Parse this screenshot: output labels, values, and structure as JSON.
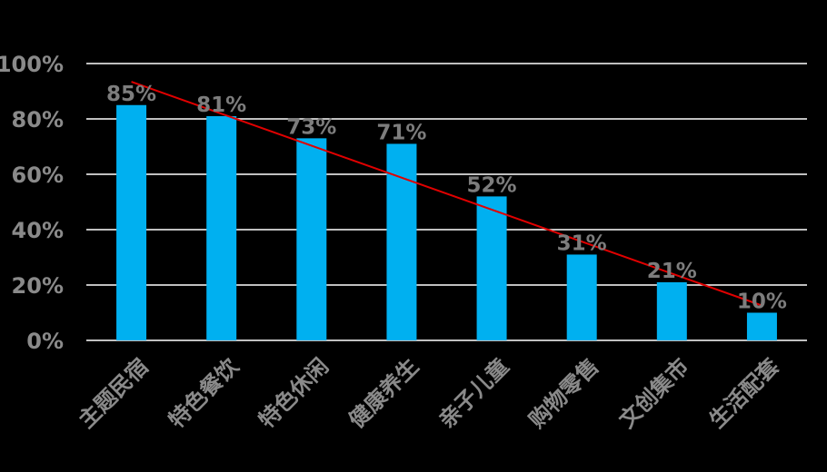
{
  "chart_data": {
    "type": "bar",
    "categories": [
      "主题民宿",
      "特色餐饮",
      "特色休闲",
      "健康养生",
      "亲子儿童",
      "购物零售",
      "文创集市",
      "生活配套"
    ],
    "values": [
      85,
      81,
      73,
      71,
      52,
      31,
      21,
      10
    ],
    "data_labels": [
      "85%",
      "81%",
      "73%",
      "71%",
      "52%",
      "31%",
      "21%",
      "10%"
    ],
    "y_ticks": [
      "0%",
      "20%",
      "40%",
      "60%",
      "80%",
      "100%"
    ],
    "ylim": [
      0,
      100
    ],
    "grid": true,
    "legend": "none",
    "trendline": {
      "type": "linear",
      "color": "#e00000"
    },
    "colors": {
      "bar": "#00b0f0",
      "background": "#000000",
      "gridline": "#ffffff",
      "text": "#8a8a8a"
    }
  }
}
